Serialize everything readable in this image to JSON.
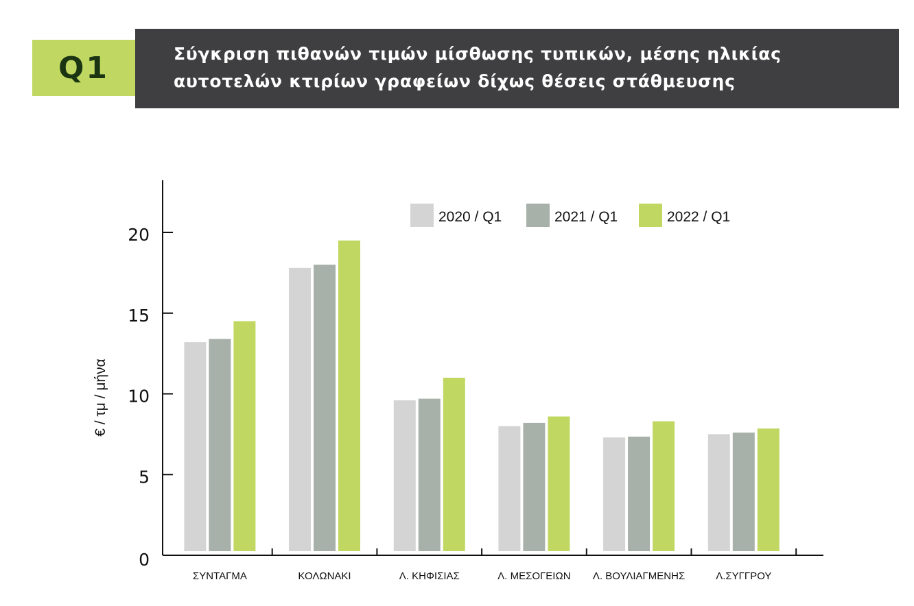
{
  "header": {
    "badge": "Q1",
    "title_lines": [
      "Σύγκριση πιθανών τιμών μίσθωσης τυπικών, μέσης ηλικίας",
      "αυτοτελών κτιρίων γραφείων δίχως θέσεις στάθμευσης"
    ]
  },
  "colors": {
    "badge_bg": "#c0d862",
    "badge_text": "#1b3513",
    "title_bg": "#3f3f41",
    "axis": "#111111"
  },
  "chart_data": {
    "type": "bar",
    "title": "Σύγκριση πιθανών τιμών μίσθωσης τυπικών, μέσης ηλικίας αυτοτελών κτιρίων γραφείων δίχως θέσεις στάθμευσης",
    "xlabel": "",
    "ylabel": "€ / τμ / μήνα",
    "ylim": [
      0,
      23
    ],
    "yticks": [
      0,
      5,
      10,
      15,
      20
    ],
    "grid": false,
    "legend_position": "top-right",
    "categories": [
      "ΣΥΝΤΑΓΜΑ",
      "ΚΟΛΩΝΑΚΙ",
      "Λ. ΚΗΦΙΣΙΑΣ",
      "Λ. ΜΕΣΟΓΕΙΩΝ",
      "Λ. ΒΟΥΛΙΑΓΜΕΝΗΣ",
      "Λ.ΣΥΓΓΡΟΥ"
    ],
    "series": [
      {
        "name": "2020 / Q1",
        "color": "#d3d4d3",
        "values": [
          13.2,
          17.8,
          9.6,
          8.0,
          7.3,
          7.5
        ]
      },
      {
        "name": "2021 / Q1",
        "color": "#a8b0aa",
        "values": [
          13.4,
          18.0,
          9.7,
          8.2,
          7.35,
          7.6
        ]
      },
      {
        "name": "2022 / Q1",
        "color": "#c0d862",
        "values": [
          14.5,
          19.5,
          11.0,
          8.6,
          8.3,
          7.85
        ]
      }
    ]
  }
}
